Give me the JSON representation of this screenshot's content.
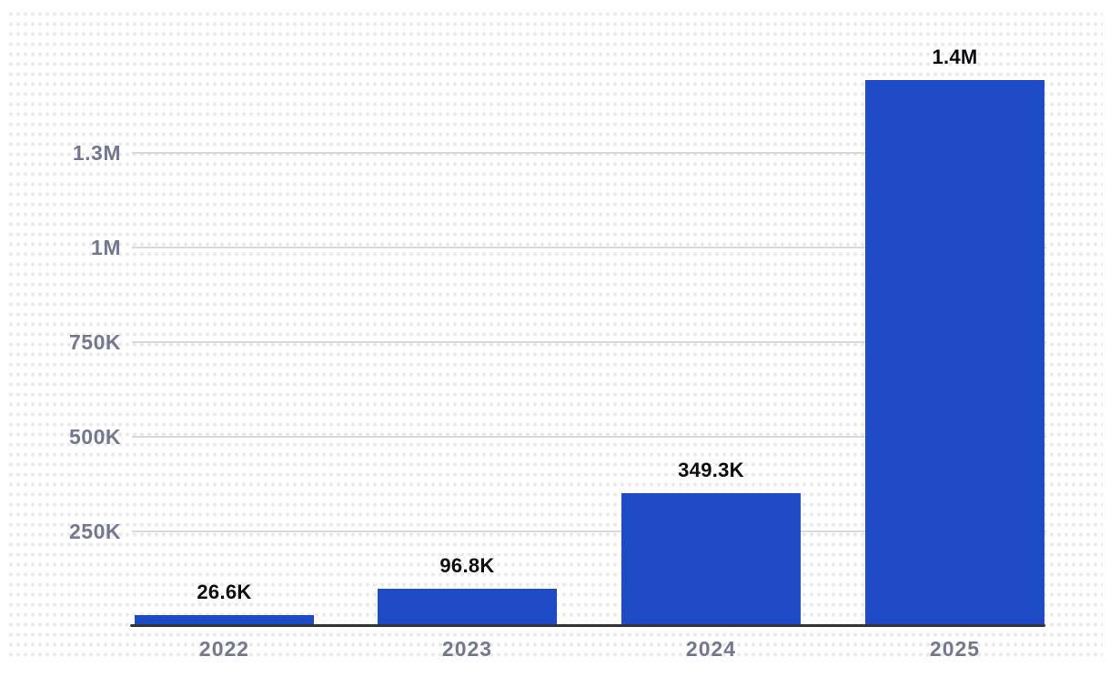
{
  "chart_data": {
    "type": "bar",
    "title": "",
    "xlabel": "",
    "ylabel": "",
    "legend": "none",
    "grid": "horizontal",
    "categories": [
      "2022",
      "2023",
      "2024",
      "2025"
    ],
    "values": [
      26600,
      96800,
      349300,
      1440000
    ],
    "bar_labels": [
      "26.6K",
      "96.8K",
      "349.3K",
      "1.4M"
    ],
    "yticks": [
      {
        "value": 250000,
        "label": "250K"
      },
      {
        "value": 500000,
        "label": "500K"
      },
      {
        "value": 750000,
        "label": "750K"
      },
      {
        "value": 1000000,
        "label": "1M"
      },
      {
        "value": 1250000,
        "label": "1.3M"
      }
    ],
    "ylim": [
      0,
      1500000
    ],
    "colors": {
      "bar": "#1d4ac5",
      "grid": "#d9d9dd",
      "axis": "#343539",
      "tick_label": "#73788f",
      "value_label": "#0c0d10",
      "dot": "#e9e9ec",
      "background": "#ffffff"
    }
  }
}
